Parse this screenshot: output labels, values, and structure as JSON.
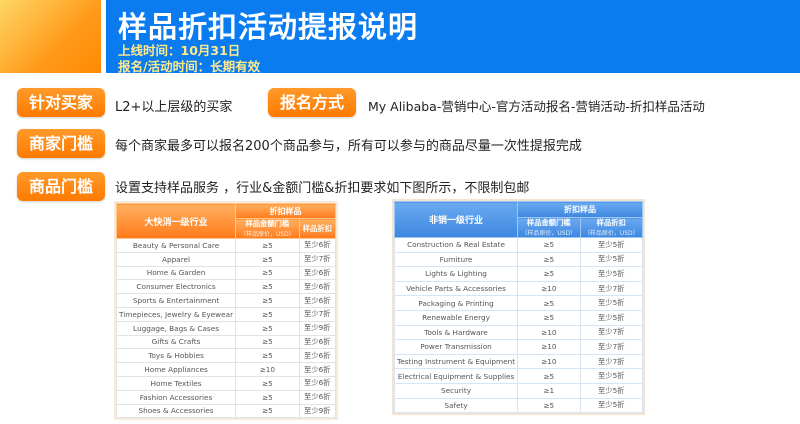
{
  "header": {
    "title": "样品折扣活动提报说明",
    "launch": "上线时间：10月31日",
    "period": "报名/活动时间：长期有效"
  },
  "sections": [
    {
      "label": "针对买家",
      "text": "L2+以上层级的买家"
    },
    {
      "label": "报名方式",
      "text": "My Alibaba-营销中心-官方活动报名-营销活动-折扣样品活动"
    },
    {
      "label": "商家门槛",
      "text": "每个商家最多可以报名200个商品参与，所有可以参与的商品尽量一次性提报完成"
    },
    {
      "label": "商品门槛",
      "text": "设置支持样品服务 ，行业&金额门槛&折扣要求如下图所示，不限制包邮"
    }
  ],
  "left_table": {
    "industry_header": "大快消一级行业",
    "group_header": "折扣样品",
    "col1": "样品金额门槛",
    "col1_note": "（样品原价，USD）",
    "col2": "样品折扣",
    "rows": [
      [
        "Beauty & Personal Care",
        "≥5",
        "至少6折"
      ],
      [
        "Apparel",
        "≥5",
        "至少7折"
      ],
      [
        "Home & Garden",
        "≥5",
        "至少6折"
      ],
      [
        "Consumer Electronics",
        "≥5",
        "至少6折"
      ],
      [
        "Sports & Entertainment",
        "≥5",
        "至少6折"
      ],
      [
        "Timepieces, Jewelry & Eyewear",
        "≥5",
        "至少7折"
      ],
      [
        "Luggage, Bags & Cases",
        "≥5",
        "至少9折"
      ],
      [
        "Gifts & Crafts",
        "≥5",
        "至少6折"
      ],
      [
        "Toys & Hobbies",
        "≥5",
        "至少6折"
      ],
      [
        "Home Appliances",
        "≥10",
        "至少6折"
      ],
      [
        "Home Textiles",
        "≥5",
        "至少6折"
      ],
      [
        "Fashion Accessories",
        "≥5",
        "至少6折"
      ],
      [
        "Shoes & Accessories",
        "≥5",
        "至少9折"
      ]
    ]
  },
  "right_table": {
    "industry_header": "非销一级行业",
    "group_header": "折扣样品",
    "col1": "样品金额门槛",
    "col1_note": "（样品原价，USD）",
    "col2": "样品折扣",
    "col2_note": "（样品原价，USD）",
    "rows": [
      [
        "Construction & Real Estate",
        "≥5",
        "至少5折"
      ],
      [
        "Furniture",
        "≥5",
        "至少5折"
      ],
      [
        "Lights & Lighting",
        "≥5",
        "至少5折"
      ],
      [
        "Vehicle Parts & Accessories",
        "≥10",
        "至少7折"
      ],
      [
        "Packaging & Printing",
        "≥5",
        "至少5折"
      ],
      [
        "Renewable Energy",
        "≥5",
        "至少5折"
      ],
      [
        "Tools & Hardware",
        "≥10",
        "至少7折"
      ],
      [
        "Power Transmission",
        "≥10",
        "至少7折"
      ],
      [
        "Testing Instrument & Equipment",
        "≥10",
        "至少7折"
      ],
      [
        "Electrical Equipment & Supplies",
        "≥5",
        "至少5折"
      ],
      [
        "Security",
        "≥1",
        "至少5折"
      ],
      [
        "Safety",
        "≥5",
        "至少5折"
      ]
    ]
  },
  "colors": {
    "brand_blue": "#0a7cf0",
    "accent_orange": "#ff8a00"
  }
}
